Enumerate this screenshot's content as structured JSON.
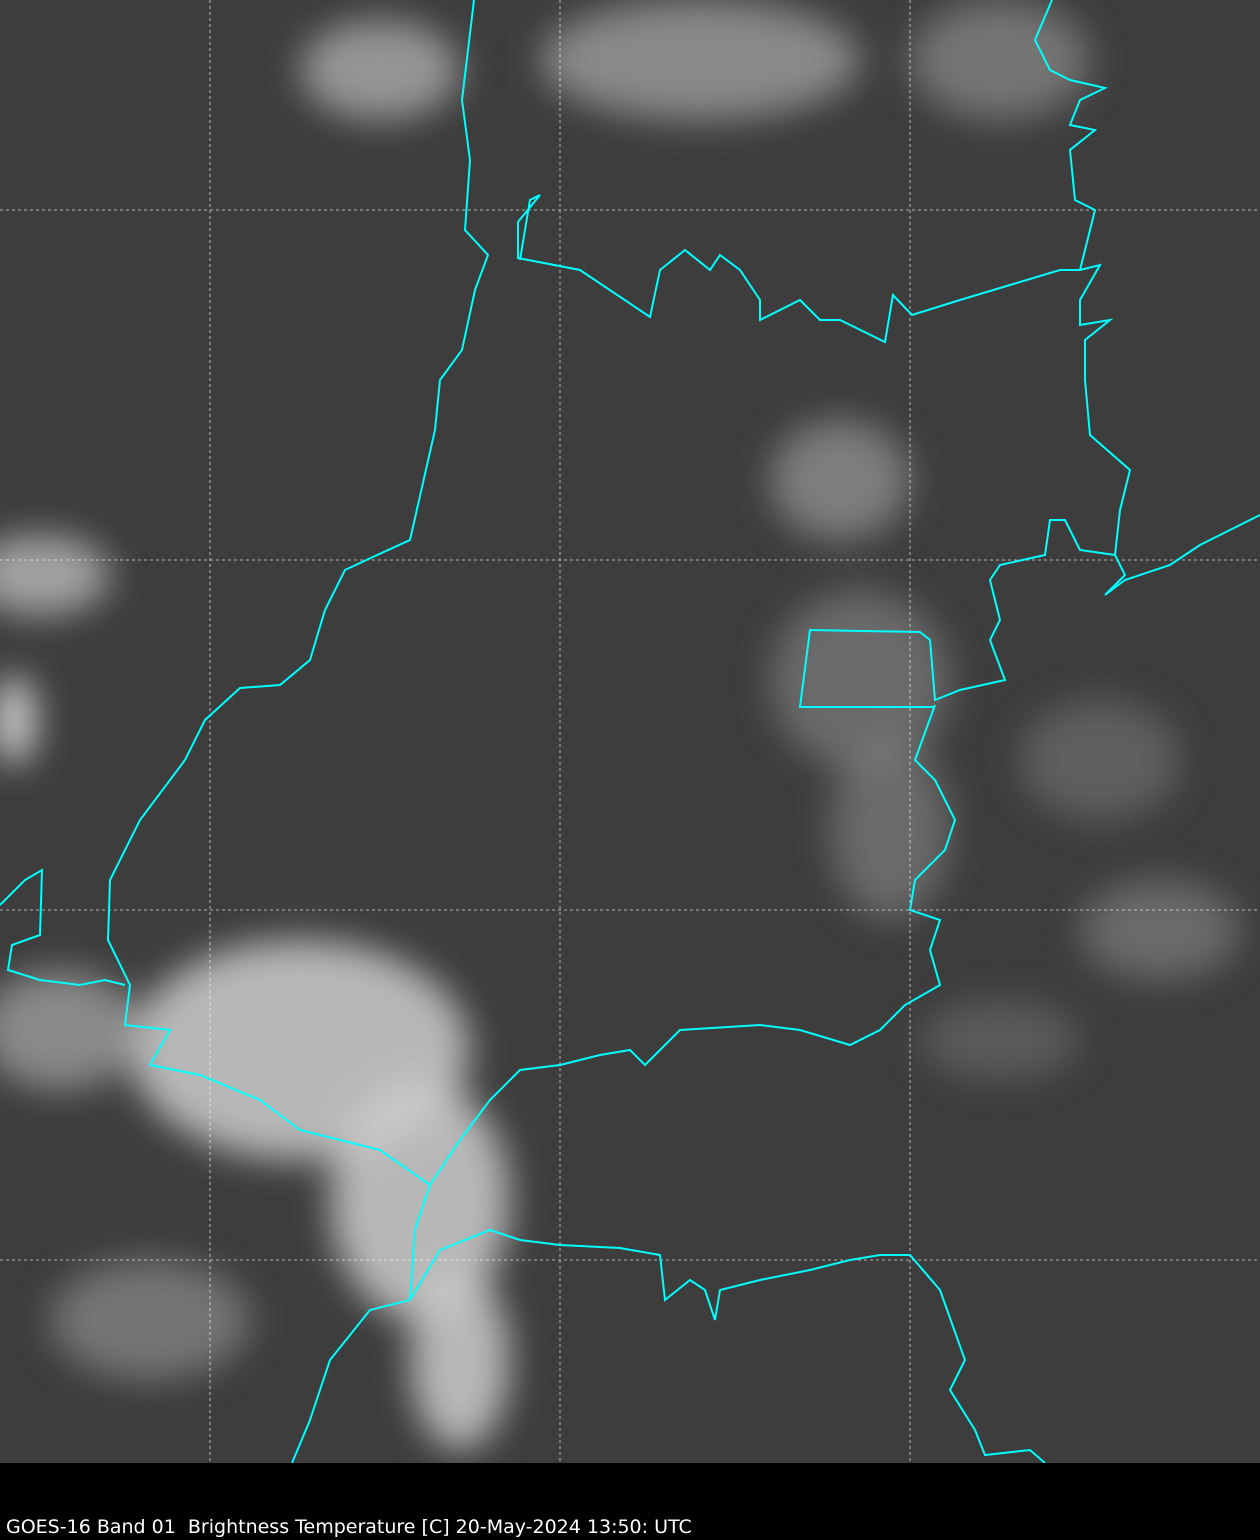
{
  "caption": "GOES-16 Band 01  Brightness Temperature [C] 20-May-2024 13:50: UTC",
  "colors": {
    "background": "#3e3e3e",
    "border": "#00ffff",
    "grid": "#ffffff",
    "caption_bar": "#000000"
  },
  "gridlines": {
    "style": "dotted",
    "visible": true
  }
}
